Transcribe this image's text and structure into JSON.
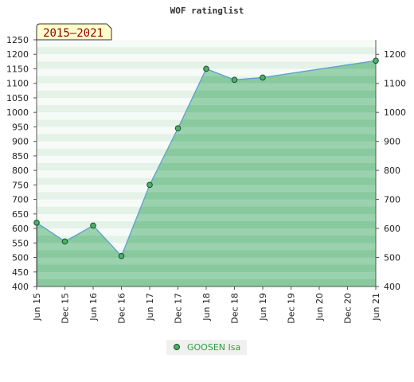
{
  "chart_data": {
    "type": "area",
    "title": "WOF ratinglist",
    "period_label": "2015–2021",
    "categories": [
      "Jun 15",
      "Dec 15",
      "Jun 16",
      "Dec 16",
      "Jun 17",
      "Dec 17",
      "Jun 18",
      "Dec 18",
      "Jun 19",
      "Dec 19",
      "Jun 20",
      "Dec 20",
      "Jun 21"
    ],
    "series": [
      {
        "name": "GOOSEN Isa",
        "points": [
          {
            "x": "Jun 15",
            "y": 620
          },
          {
            "x": "Dec 15",
            "y": 555
          },
          {
            "x": "Jun 16",
            "y": 610
          },
          {
            "x": "Dec 16",
            "y": 505
          },
          {
            "x": "Jun 17",
            "y": 750
          },
          {
            "x": "Dec 17",
            "y": 945
          },
          {
            "x": "Jun 18",
            "y": 1150
          },
          {
            "x": "Dec 18",
            "y": 1112
          },
          {
            "x": "Jun 19",
            "y": 1120
          },
          {
            "x": "Jun 21",
            "y": 1178
          }
        ]
      }
    ],
    "y_left_ticks": [
      400,
      450,
      500,
      550,
      600,
      650,
      700,
      750,
      800,
      850,
      900,
      950,
      1000,
      1050,
      1100,
      1150,
      1200,
      1250
    ],
    "y_right_ticks": [
      400,
      500,
      600,
      700,
      800,
      900,
      1000,
      1100,
      1200
    ],
    "ylim": [
      400,
      1250
    ],
    "legend_position": "bottom-center",
    "colors": {
      "fill": "#7cc495",
      "line": "#5aa0d0",
      "marker": "#4caf68",
      "badge_bg": "#ffffcc",
      "legend_text": "#2e9e3e"
    }
  }
}
